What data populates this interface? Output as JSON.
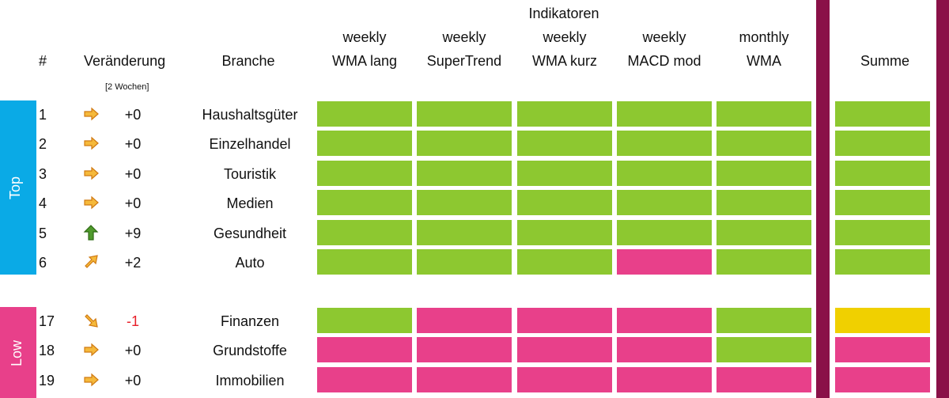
{
  "header": {
    "super": "Indikatoren",
    "hash": "#",
    "veraenderung": "Veränderung",
    "veraenderung_sub": "[2 Wochen]",
    "branche": "Branche",
    "indicators": [
      {
        "line1": "weekly",
        "line2": "WMA lang"
      },
      {
        "line1": "weekly",
        "line2": "SuperTrend"
      },
      {
        "line1": "weekly",
        "line2": "WMA kurz"
      },
      {
        "line1": "weekly",
        "line2": "MACD mod"
      },
      {
        "line1": "monthly",
        "line2": "WMA"
      }
    ],
    "summe": "Summe"
  },
  "colors": {
    "green": "#8dc830",
    "pink": "#e8408a",
    "yellow": "#f0d000",
    "top_tab": "#0aaae6",
    "low_tab": "#e8408a",
    "divider": "#8a1148"
  },
  "groups": {
    "top": {
      "label": "Top",
      "rows": [
        {
          "rank": "1",
          "arrow": "right-arrow-icon",
          "change": "+0",
          "branche": "Haushaltsgüter",
          "signals": [
            "green",
            "green",
            "green",
            "green",
            "green"
          ],
          "summe": "green"
        },
        {
          "rank": "2",
          "arrow": "right-arrow-icon",
          "change": "+0",
          "branche": "Einzelhandel",
          "signals": [
            "green",
            "green",
            "green",
            "green",
            "green"
          ],
          "summe": "green"
        },
        {
          "rank": "3",
          "arrow": "right-arrow-icon",
          "change": "+0",
          "branche": "Touristik",
          "signals": [
            "green",
            "green",
            "green",
            "green",
            "green"
          ],
          "summe": "green"
        },
        {
          "rank": "4",
          "arrow": "right-arrow-icon",
          "change": "+0",
          "branche": "Medien",
          "signals": [
            "green",
            "green",
            "green",
            "green",
            "green"
          ],
          "summe": "green"
        },
        {
          "rank": "5",
          "arrow": "up-arrow-icon",
          "change": "+9",
          "branche": "Gesundheit",
          "signals": [
            "green",
            "green",
            "green",
            "green",
            "green"
          ],
          "summe": "green"
        },
        {
          "rank": "6",
          "arrow": "up-right-arrow-icon",
          "change": "+2",
          "branche": "Auto",
          "signals": [
            "green",
            "green",
            "green",
            "pink",
            "green"
          ],
          "summe": "green"
        }
      ]
    },
    "low": {
      "label": "Low",
      "rows": [
        {
          "rank": "17",
          "arrow": "down-right-arrow-icon",
          "change": "-1",
          "branche": "Finanzen",
          "signals": [
            "green",
            "pink",
            "pink",
            "pink",
            "green"
          ],
          "summe": "yellow"
        },
        {
          "rank": "18",
          "arrow": "right-arrow-icon",
          "change": "+0",
          "branche": "Grundstoffe",
          "signals": [
            "pink",
            "pink",
            "pink",
            "pink",
            "green"
          ],
          "summe": "pink"
        },
        {
          "rank": "19",
          "arrow": "right-arrow-icon",
          "change": "+0",
          "branche": "Immobilien",
          "signals": [
            "pink",
            "pink",
            "pink",
            "pink",
            "pink"
          ],
          "summe": "pink"
        }
      ]
    }
  }
}
